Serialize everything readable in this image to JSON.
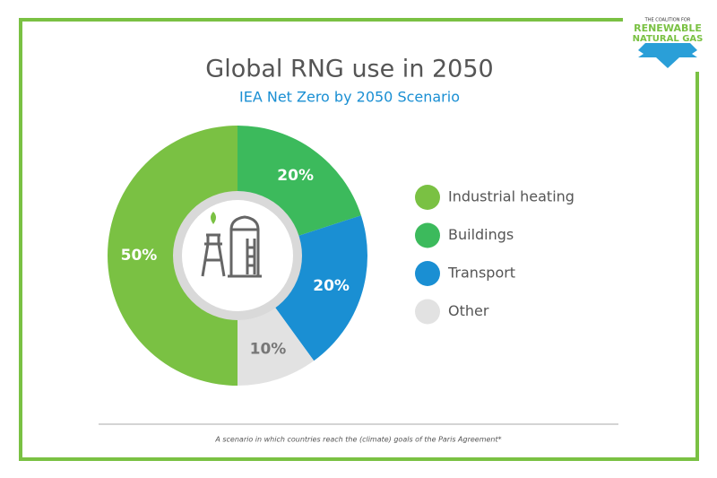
{
  "chart_data": {
    "type": "pie",
    "title": "Global RNG use in 2050",
    "subtitle": "IEA Net Zero by 2050 Scenario",
    "categories": [
      "Industrial heating",
      "Buildings",
      "Transport",
      "Other"
    ],
    "values": [
      50,
      20,
      20,
      10
    ],
    "value_labels": [
      "50%",
      "20%",
      "20%",
      "10%"
    ],
    "colors": [
      "#7ac143",
      "#3cba5c",
      "#1a8fd3",
      "#e2e2e2"
    ],
    "donut": true,
    "legend": "right"
  },
  "footnote": "A scenario in which countries reach the (climate) goals of the Paris Agreement*",
  "logo": {
    "tagline": "THE COALITION FOR",
    "line1": "RENEWABLE",
    "line2": "NATURAL GAS"
  }
}
